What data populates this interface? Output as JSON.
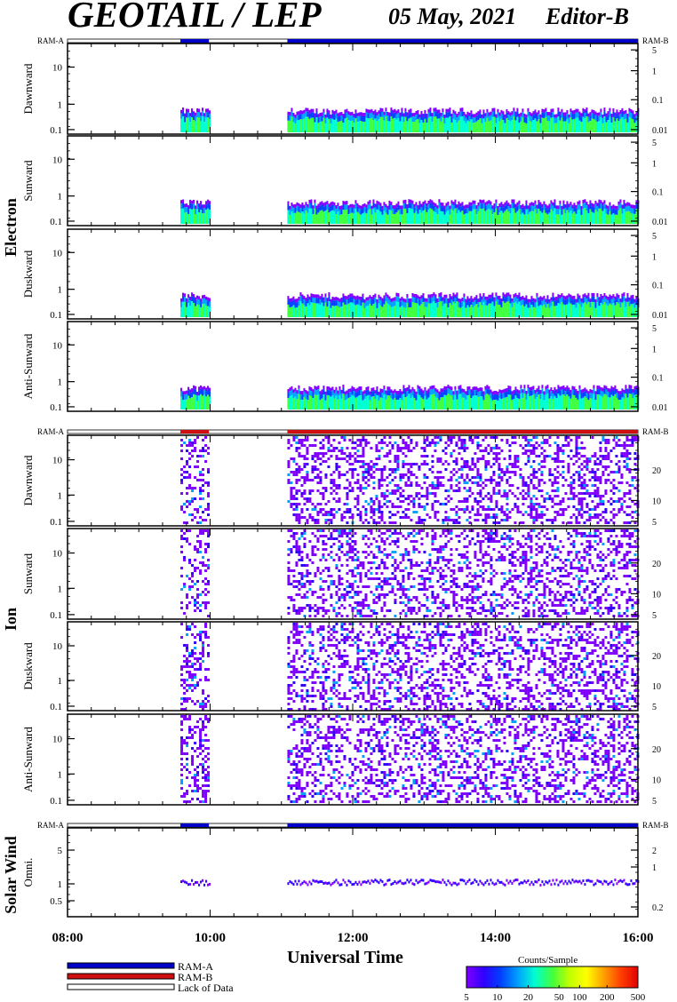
{
  "title": "GEOTAIL / LEP",
  "date": "05 May, 2021",
  "editor": "Editor-B",
  "xlabel": "Universal Time",
  "xticks": [
    "08:00",
    "10:00",
    "12:00",
    "14:00",
    "16:00"
  ],
  "groups": [
    {
      "label": "Electron",
      "panels": [
        "Dawnward",
        "Sunward",
        "Duskward",
        "Anti-Sunward"
      ],
      "ram_left": "RAM-A",
      "ram_right": "RAM-B",
      "ram_mode": "RAM-A"
    },
    {
      "label": "Ion",
      "panels": [
        "Dawnward",
        "Sunward",
        "Duskward",
        "Anti-Sunward"
      ],
      "ram_left": "RAM-A",
      "ram_right": "RAM-B",
      "ram_mode": "RAM-B"
    },
    {
      "label": "Solar Wind",
      "panels": [
        "Omni."
      ],
      "ram_left": "RAM-A",
      "ram_right": "RAM-B",
      "ram_mode": "RAM-A"
    }
  ],
  "legend": [
    {
      "label": "RAM-A",
      "color": "#0000c8"
    },
    {
      "label": "RAM-B",
      "color": "#d01010"
    },
    {
      "label": "Lack of Data",
      "color": "#ffffff"
    }
  ],
  "colorbar": {
    "title": "Counts/Sample",
    "ticks": [
      "5",
      "10",
      "20",
      "50",
      "100",
      "200",
      "500"
    ],
    "colors": [
      "#7f00ff",
      "#3000ff",
      "#0040ff",
      "#00a0ff",
      "#00ffd0",
      "#40ff40",
      "#c0ff00",
      "#ffff00",
      "#ffa000",
      "#ff4000",
      "#e00000"
    ]
  },
  "chart_data": {
    "type": "heatmap",
    "x_range": [
      "08:00",
      "16:00"
    ],
    "data_intervals": [
      [
        "09:35",
        "09:59"
      ],
      [
        "11:05",
        "16:00"
      ]
    ],
    "panels": [
      {
        "group": "Electron",
        "name": "Dawnward",
        "left_ticks": [
          "10",
          "1",
          "0.1"
        ],
        "right_ticks": [
          "5",
          "1",
          "0.1",
          "0.01"
        ]
      },
      {
        "group": "Electron",
        "name": "Sunward",
        "left_ticks": [
          "10",
          "1",
          "0.1"
        ],
        "right_ticks": [
          "5",
          "1",
          "0.1",
          "0.01"
        ]
      },
      {
        "group": "Electron",
        "name": "Duskward",
        "left_ticks": [
          "10",
          "1",
          "0.1"
        ],
        "right_ticks": [
          "5",
          "1",
          "0.1",
          "0.01"
        ]
      },
      {
        "group": "Electron",
        "name": "Anti-Sunward",
        "left_ticks": [
          "10",
          "1",
          "0.1"
        ],
        "right_ticks": [
          "5",
          "1",
          "0.1",
          "0.01"
        ]
      },
      {
        "group": "Ion",
        "name": "Dawnward",
        "left_ticks": [
          "10",
          "1",
          "0.1"
        ],
        "right_ticks": [
          "20",
          "10",
          "5"
        ]
      },
      {
        "group": "Ion",
        "name": "Sunward",
        "left_ticks": [
          "10",
          "1",
          "0.1"
        ],
        "right_ticks": [
          "20",
          "10",
          "5"
        ]
      },
      {
        "group": "Ion",
        "name": "Duskward",
        "left_ticks": [
          "10",
          "1",
          "0.1"
        ],
        "right_ticks": [
          "20",
          "10",
          "5"
        ]
      },
      {
        "group": "Ion",
        "name": "Anti-Sunward",
        "left_ticks": [
          "10",
          "1",
          "0.1"
        ],
        "right_ticks": [
          "20",
          "10",
          "5"
        ]
      },
      {
        "group": "Solar Wind",
        "name": "Omni.",
        "left_ticks": [
          "5",
          "1",
          "0.5"
        ],
        "right_ticks": [
          "2",
          "1",
          "0.2"
        ]
      }
    ]
  }
}
